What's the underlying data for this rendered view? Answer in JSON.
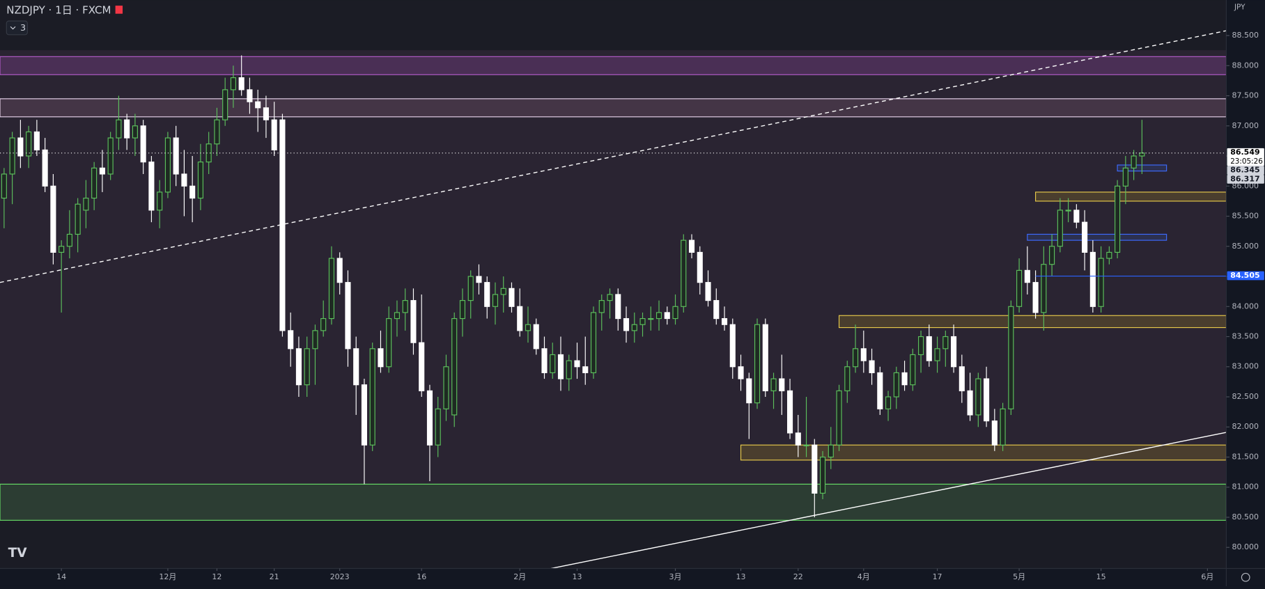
{
  "chart_data": {
    "type": "candlestick",
    "title": "NZDJPY · 1日 · FXCM",
    "indicator_badge": "3",
    "currency": "JPY",
    "ylim": [
      79.65,
      89.09
    ],
    "xlim": [
      -0.5,
      149.3
    ],
    "yticks": [
      {
        "value": 80,
        "label": "80.000"
      },
      {
        "value": 80.5,
        "label": "80.500"
      },
      {
        "value": 81,
        "label": "81.000"
      },
      {
        "value": 81.5,
        "label": "81.500"
      },
      {
        "value": 82,
        "label": "82.000"
      },
      {
        "value": 82.5,
        "label": "82.500"
      },
      {
        "value": 83,
        "label": "83.000"
      },
      {
        "value": 83.5,
        "label": "83.500"
      },
      {
        "value": 84,
        "label": "84.000"
      },
      {
        "value": 84.5,
        "label": "84.500"
      },
      {
        "value": 85,
        "label": "85.000"
      },
      {
        "value": 85.5,
        "label": "85.500"
      },
      {
        "value": 86,
        "label": "86.000"
      },
      {
        "value": 86.5,
        "label": "86.500"
      },
      {
        "value": 87,
        "label": "87.000"
      },
      {
        "value": 87.5,
        "label": "87.500"
      },
      {
        "value": 88,
        "label": "88.000"
      },
      {
        "value": 88.5,
        "label": "88.500"
      }
    ],
    "xticks": [
      {
        "value": 7,
        "label": "14"
      },
      {
        "value": 20,
        "label": "12月"
      },
      {
        "value": 26,
        "label": "12"
      },
      {
        "value": 33,
        "label": "21"
      },
      {
        "value": 41,
        "label": "2023"
      },
      {
        "value": 51,
        "label": "16"
      },
      {
        "value": 63,
        "label": "2月"
      },
      {
        "value": 70,
        "label": "13"
      },
      {
        "value": 82,
        "label": "3月"
      },
      {
        "value": 90,
        "label": "13"
      },
      {
        "value": 97,
        "label": "22"
      },
      {
        "value": 105,
        "label": "4月"
      },
      {
        "value": 114,
        "label": "17"
      },
      {
        "value": 124,
        "label": "5月"
      },
      {
        "value": 134,
        "label": "15"
      },
      {
        "value": 147,
        "label": "6月"
      }
    ],
    "up_color": "#1e2a22",
    "up_border": "#5cbf5c",
    "down_color": "#ffffff",
    "ohlc": [
      [
        85.8,
        86.3,
        85.3,
        86.2
      ],
      [
        86.2,
        86.9,
        85.7,
        86.8
      ],
      [
        86.8,
        87.1,
        86.3,
        86.5
      ],
      [
        86.5,
        87.0,
        86.3,
        86.9
      ],
      [
        86.9,
        87.1,
        86.5,
        86.6
      ],
      [
        86.6,
        86.8,
        85.9,
        86.0
      ],
      [
        86.0,
        86.2,
        84.7,
        84.9
      ],
      [
        84.9,
        85.1,
        83.9,
        85.0
      ],
      [
        85.0,
        85.6,
        84.8,
        85.2
      ],
      [
        85.2,
        85.8,
        84.9,
        85.7
      ],
      [
        85.6,
        86.1,
        85.3,
        85.8
      ],
      [
        85.8,
        86.4,
        85.6,
        86.3
      ],
      [
        86.3,
        86.6,
        85.9,
        86.2
      ],
      [
        86.2,
        86.9,
        86.1,
        86.8
      ],
      [
        86.8,
        87.5,
        86.6,
        87.1
      ],
      [
        87.1,
        87.2,
        86.6,
        86.8
      ],
      [
        86.8,
        87.2,
        86.5,
        87.0
      ],
      [
        87.0,
        87.1,
        86.2,
        86.4
      ],
      [
        86.4,
        86.5,
        85.4,
        85.6
      ],
      [
        85.6,
        86.1,
        85.3,
        85.9
      ],
      [
        85.9,
        86.9,
        85.8,
        86.8
      ],
      [
        86.8,
        87.0,
        86.0,
        86.2
      ],
      [
        86.2,
        86.6,
        85.5,
        86.0
      ],
      [
        86.0,
        86.5,
        85.4,
        85.8
      ],
      [
        85.8,
        86.7,
        85.6,
        86.4
      ],
      [
        86.4,
        86.9,
        86.2,
        86.7
      ],
      [
        86.7,
        87.3,
        86.5,
        87.1
      ],
      [
        87.1,
        87.8,
        87.0,
        87.6
      ],
      [
        87.6,
        88.0,
        87.3,
        87.8
      ],
      [
        87.8,
        88.17,
        87.5,
        87.6
      ],
      [
        87.6,
        87.8,
        87.2,
        87.4
      ],
      [
        87.4,
        87.6,
        86.9,
        87.3
      ],
      [
        87.3,
        87.5,
        86.8,
        87.1
      ],
      [
        87.1,
        87.4,
        86.5,
        86.6
      ],
      [
        87.1,
        87.2,
        83.5,
        83.6
      ],
      [
        83.6,
        83.9,
        83.0,
        83.3
      ],
      [
        83.3,
        83.5,
        82.5,
        82.7
      ],
      [
        82.7,
        83.5,
        82.5,
        83.3
      ],
      [
        83.3,
        83.7,
        82.7,
        83.6
      ],
      [
        83.6,
        84.1,
        83.5,
        83.8
      ],
      [
        83.8,
        85.0,
        83.7,
        84.8
      ],
      [
        84.8,
        84.9,
        84.2,
        84.4
      ],
      [
        84.4,
        84.6,
        83.0,
        83.3
      ],
      [
        83.3,
        83.5,
        82.2,
        82.7
      ],
      [
        82.7,
        82.8,
        81.05,
        81.7
      ],
      [
        81.7,
        83.4,
        81.6,
        83.3
      ],
      [
        83.3,
        83.6,
        82.9,
        83.0
      ],
      [
        83.0,
        84.0,
        82.9,
        83.8
      ],
      [
        83.8,
        84.1,
        83.5,
        83.9
      ],
      [
        83.9,
        84.3,
        83.6,
        84.1
      ],
      [
        84.1,
        84.3,
        83.2,
        83.4
      ],
      [
        83.4,
        84.2,
        82.5,
        82.6
      ],
      [
        82.6,
        82.7,
        81.1,
        81.7
      ],
      [
        81.7,
        82.5,
        81.5,
        82.3
      ],
      [
        82.3,
        83.2,
        82.1,
        83.0
      ],
      [
        82.2,
        83.9,
        82.0,
        83.8
      ],
      [
        83.8,
        84.3,
        83.5,
        84.1
      ],
      [
        84.1,
        84.6,
        83.8,
        84.5
      ],
      [
        84.5,
        84.7,
        84.2,
        84.4
      ],
      [
        84.4,
        84.5,
        83.8,
        84.0
      ],
      [
        84.0,
        84.4,
        83.7,
        84.2
      ],
      [
        84.2,
        84.5,
        83.9,
        84.3
      ],
      [
        84.3,
        84.4,
        83.9,
        84.0
      ],
      [
        84.0,
        84.3,
        83.5,
        83.6
      ],
      [
        83.6,
        84.0,
        83.4,
        83.7
      ],
      [
        83.7,
        83.8,
        83.2,
        83.3
      ],
      [
        83.3,
        83.5,
        82.8,
        82.9
      ],
      [
        82.9,
        83.4,
        82.8,
        83.2
      ],
      [
        83.2,
        83.5,
        82.6,
        82.8
      ],
      [
        82.8,
        83.2,
        82.6,
        83.1
      ],
      [
        83.1,
        83.4,
        82.8,
        83.0
      ],
      [
        83.0,
        83.5,
        82.7,
        82.9
      ],
      [
        82.9,
        84.0,
        82.8,
        83.9
      ],
      [
        83.9,
        84.2,
        83.6,
        84.1
      ],
      [
        84.1,
        84.3,
        83.8,
        84.2
      ],
      [
        84.2,
        84.3,
        83.6,
        83.8
      ],
      [
        83.8,
        84.0,
        83.4,
        83.6
      ],
      [
        83.6,
        83.9,
        83.4,
        83.7
      ],
      [
        83.7,
        83.9,
        83.5,
        83.8
      ],
      [
        83.8,
        84.0,
        83.6,
        83.8
      ],
      [
        83.8,
        84.1,
        83.6,
        83.9
      ],
      [
        83.9,
        84.0,
        83.7,
        83.8
      ],
      [
        83.8,
        84.2,
        83.7,
        84.0
      ],
      [
        84.0,
        85.2,
        83.9,
        85.1
      ],
      [
        85.1,
        85.2,
        84.8,
        84.9
      ],
      [
        84.9,
        85.0,
        84.2,
        84.4
      ],
      [
        84.4,
        84.6,
        84.0,
        84.1
      ],
      [
        84.1,
        84.3,
        83.7,
        83.8
      ],
      [
        83.8,
        84.0,
        83.6,
        83.7
      ],
      [
        83.7,
        83.8,
        82.8,
        83.0
      ],
      [
        83.0,
        83.2,
        82.6,
        82.8
      ],
      [
        82.8,
        82.9,
        81.8,
        82.4
      ],
      [
        82.4,
        83.8,
        82.3,
        83.7
      ],
      [
        83.7,
        83.8,
        82.5,
        82.6
      ],
      [
        82.6,
        82.9,
        82.3,
        82.8
      ],
      [
        82.8,
        83.2,
        82.2,
        82.6
      ],
      [
        82.6,
        82.8,
        81.8,
        81.9
      ],
      [
        81.9,
        82.2,
        81.5,
        81.7
      ],
      [
        81.7,
        82.5,
        81.5,
        81.7
      ],
      [
        81.7,
        81.8,
        80.5,
        80.9
      ],
      [
        80.9,
        81.6,
        80.8,
        81.5
      ],
      [
        81.5,
        82.0,
        81.3,
        81.7
      ],
      [
        81.7,
        82.7,
        81.6,
        82.6
      ],
      [
        82.6,
        83.1,
        82.4,
        83.0
      ],
      [
        83.0,
        83.7,
        82.9,
        83.3
      ],
      [
        83.3,
        83.6,
        82.9,
        83.1
      ],
      [
        83.1,
        83.3,
        82.7,
        82.9
      ],
      [
        82.9,
        83.0,
        82.2,
        82.3
      ],
      [
        82.3,
        82.6,
        82.1,
        82.5
      ],
      [
        82.5,
        83.0,
        82.3,
        82.9
      ],
      [
        82.9,
        83.1,
        82.6,
        82.7
      ],
      [
        82.7,
        83.3,
        82.6,
        83.2
      ],
      [
        83.2,
        83.6,
        82.9,
        83.5
      ],
      [
        83.5,
        83.7,
        83.0,
        83.1
      ],
      [
        83.1,
        83.5,
        82.9,
        83.3
      ],
      [
        83.3,
        83.6,
        83.0,
        83.5
      ],
      [
        83.5,
        83.7,
        82.9,
        83.0
      ],
      [
        83.0,
        83.2,
        82.4,
        82.6
      ],
      [
        82.6,
        82.9,
        82.1,
        82.2
      ],
      [
        82.2,
        82.9,
        82.0,
        82.8
      ],
      [
        82.8,
        83.0,
        82.0,
        82.1
      ],
      [
        82.1,
        82.3,
        81.6,
        81.7
      ],
      [
        81.7,
        82.4,
        81.6,
        82.3
      ],
      [
        82.3,
        84.1,
        82.2,
        84.0
      ],
      [
        84.0,
        84.8,
        83.9,
        84.6
      ],
      [
        84.6,
        85.0,
        84.2,
        84.4
      ],
      [
        84.4,
        84.6,
        83.8,
        83.9
      ],
      [
        83.9,
        85.0,
        83.6,
        84.7
      ],
      [
        84.7,
        85.2,
        84.5,
        85.0
      ],
      [
        85.0,
        85.8,
        84.9,
        85.6
      ],
      [
        85.6,
        85.8,
        85.4,
        85.6
      ],
      [
        85.6,
        85.7,
        85.3,
        85.4
      ],
      [
        85.4,
        85.6,
        84.6,
        84.9
      ],
      [
        84.9,
        85.1,
        83.9,
        84.0
      ],
      [
        84.0,
        85.0,
        83.9,
        84.8
      ],
      [
        84.8,
        85.0,
        84.7,
        84.9
      ],
      [
        84.9,
        86.1,
        84.8,
        86.0
      ],
      [
        86.0,
        86.5,
        85.7,
        86.3
      ],
      [
        86.3,
        86.6,
        86.1,
        86.5
      ],
      [
        86.5,
        87.1,
        86.2,
        86.549
      ]
    ],
    "zones": [
      {
        "from": 80.45,
        "to": 88.25,
        "color": "#2a2432",
        "border": "#2a2432"
      },
      {
        "from": 87.85,
        "to": 88.15,
        "color": "#4a2f55",
        "border": "#b35bc9"
      },
      {
        "from": 87.15,
        "to": 87.45,
        "color": "#443546",
        "border": "#e6d2ea"
      },
      {
        "from": 80.45,
        "to": 81.05,
        "color": "#2c3d33",
        "border": "#66dd66"
      },
      {
        "from": 81.45,
        "to": 81.7,
        "x_from": 90,
        "color": "#4a3e2e",
        "border": "#e6c94a"
      },
      {
        "from": 83.65,
        "to": 83.85,
        "x_from": 102,
        "color": "#4a3e2e",
        "border": "#e6c94a"
      },
      {
        "from": 85.75,
        "to": 85.9,
        "x_from": 126,
        "color": "#4a3e2e",
        "border": "#e6c94a"
      },
      {
        "from": 85.1,
        "to": 85.2,
        "x_from": 125,
        "x_to": 142,
        "color": "#2c3050",
        "border": "#3d6bff"
      },
      {
        "from": 86.25,
        "to": 86.35,
        "x_from": 136,
        "x_to": 142,
        "color": "#2c3050",
        "border": "#3d6bff"
      }
    ],
    "trendlines": [
      {
        "x": [
          -0.5,
          149.3
        ],
        "y": [
          84.4,
          88.58
        ],
        "color": "#ffffff",
        "dashed": true
      },
      {
        "x": [
          66.8,
          149.3
        ],
        "y": [
          79.65,
          81.91
        ],
        "color": "#ffffff",
        "dashed": false
      }
    ],
    "price_labels": [
      {
        "value": 86.549,
        "label": "86.549",
        "countdown": "23:05:26",
        "bg": "#ffffff",
        "fg": "#000000",
        "line": "dotted"
      },
      {
        "value": 86.345,
        "label": "86.345",
        "bg": "#d1d4dc",
        "fg": "#131722"
      },
      {
        "value": 86.317,
        "label": "86.317",
        "bg": "#d1d4dc",
        "fg": "#131722"
      },
      {
        "value": 84.505,
        "label": "84.505",
        "bg": "#2962ff",
        "fg": "#ffffff",
        "line": "solid",
        "line_from": 126
      }
    ]
  }
}
